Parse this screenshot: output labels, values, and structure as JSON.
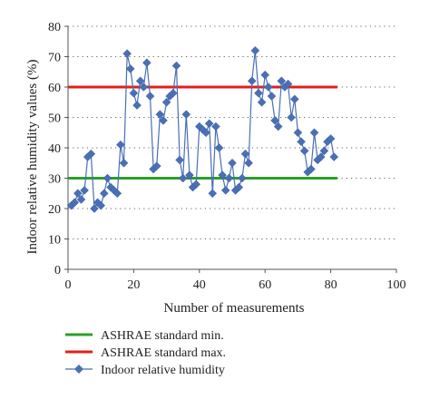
{
  "chart_data": {
    "type": "line",
    "xlabel": "Number of measurements",
    "ylabel": "Indoor relative humidity values (%)",
    "xlim": [
      0,
      100
    ],
    "ylim": [
      0,
      80
    ],
    "xticks": [
      0,
      20,
      40,
      60,
      80,
      100
    ],
    "yticks": [
      0,
      10,
      20,
      30,
      40,
      50,
      60,
      70,
      80
    ],
    "grid": "horizontal dotted",
    "legend_position": "bottom",
    "reference_lines": [
      {
        "name": "ASHRAE standard min.",
        "y": 30,
        "x_range": [
          0,
          82
        ],
        "color": "#2aa02a"
      },
      {
        "name": "ASHRAE standard max.",
        "y": 60,
        "x_range": [
          0,
          82
        ],
        "color": "#e0201c"
      }
    ],
    "series": [
      {
        "name": "Indoor relative humidity",
        "color": "#4a6fb5",
        "marker": "diamond",
        "x": [
          1,
          2,
          3,
          4,
          5,
          6,
          7,
          8,
          9,
          10,
          11,
          12,
          13,
          14,
          15,
          16,
          17,
          18,
          19,
          20,
          21,
          22,
          23,
          24,
          25,
          26,
          27,
          28,
          29,
          30,
          31,
          32,
          33,
          34,
          35,
          36,
          37,
          38,
          39,
          40,
          41,
          42,
          43,
          44,
          45,
          46,
          47,
          48,
          49,
          50,
          51,
          52,
          53,
          54,
          55,
          56,
          57,
          58,
          59,
          60,
          61,
          62,
          63,
          64,
          65,
          66,
          67,
          68,
          69,
          70,
          71,
          72,
          73,
          74,
          75,
          76,
          77,
          78,
          79,
          80,
          81
        ],
        "y": [
          21,
          22,
          25,
          23,
          26,
          37,
          38,
          20,
          22,
          21,
          25,
          30,
          27,
          26,
          25,
          41,
          35,
          71,
          66,
          58,
          54,
          62,
          60,
          68,
          57,
          33,
          34,
          51,
          49,
          55,
          57,
          58,
          67,
          36,
          30,
          51,
          31,
          27,
          28,
          47,
          46,
          45,
          48,
          25,
          47,
          40,
          31,
          26,
          30,
          35,
          26,
          27,
          30,
          38,
          35,
          62,
          72,
          58,
          55,
          64,
          60,
          57,
          49,
          47,
          62,
          60,
          61,
          50,
          56,
          45,
          42,
          39,
          32,
          33,
          45,
          36,
          37,
          39,
          42,
          43,
          37
        ]
      }
    ]
  }
}
